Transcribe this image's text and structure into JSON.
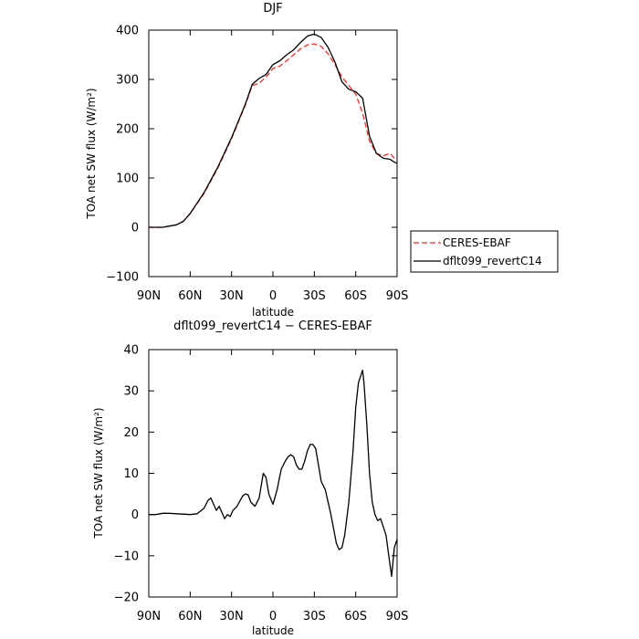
{
  "chart_data": [
    {
      "type": "line",
      "title": "DJF",
      "xlabel": "latitude",
      "ylabel": "TOA net SW flux (W/m²)",
      "xticks": [
        "90N",
        "60N",
        "30N",
        "0",
        "30S",
        "60S",
        "90S"
      ],
      "xtick_values": [
        90,
        60,
        30,
        0,
        -30,
        -60,
        -90
      ],
      "xlim": [
        90,
        -90
      ],
      "ylim": [
        -100,
        400
      ],
      "yticks": [
        -100,
        0,
        100,
        200,
        300,
        400
      ],
      "ytick_labels": [
        "−100",
        "0",
        "100",
        "200",
        "300",
        "400"
      ],
      "grid": false,
      "legend_position": "right",
      "series": [
        {
          "name": "CERES-EBAF",
          "color": "#e8312b",
          "dash": "dashed",
          "x": [
            90,
            80,
            70,
            65,
            60,
            50,
            40,
            30,
            20,
            15,
            10,
            5,
            0,
            -5,
            -10,
            -15,
            -20,
            -25,
            -30,
            -35,
            -40,
            -45,
            -50,
            -55,
            -60,
            -65,
            -70,
            -75,
            -80,
            -85,
            -88,
            -90
          ],
          "y": [
            0,
            0,
            5,
            12,
            28,
            68,
            120,
            180,
            248,
            288,
            292,
            305,
            322,
            327,
            338,
            350,
            362,
            370,
            372,
            367,
            352,
            330,
            305,
            288,
            270,
            232,
            175,
            150,
            145,
            150,
            140,
            135
          ]
        },
        {
          "name": "dflt099_revertC14",
          "color": "#000000",
          "dash": "solid",
          "x": [
            90,
            80,
            70,
            65,
            60,
            50,
            40,
            30,
            20,
            15,
            10,
            5,
            0,
            -5,
            -10,
            -15,
            -20,
            -25,
            -30,
            -35,
            -40,
            -45,
            -50,
            -55,
            -60,
            -65,
            -70,
            -75,
            -80,
            -85,
            -88,
            -90
          ],
          "y": [
            0,
            0,
            5,
            12,
            28,
            70,
            122,
            182,
            250,
            290,
            302,
            310,
            330,
            338,
            350,
            360,
            375,
            388,
            392,
            385,
            365,
            335,
            295,
            280,
            275,
            262,
            185,
            150,
            140,
            138,
            132,
            130
          ]
        }
      ]
    },
    {
      "type": "line",
      "title": "dflt099_revertC14 − CERES-EBAF",
      "xlabel": "latitude",
      "ylabel": "TOA net SW flux (W/m²)",
      "xticks": [
        "90N",
        "60N",
        "30N",
        "0",
        "30S",
        "60S",
        "90S"
      ],
      "xtick_values": [
        90,
        60,
        30,
        0,
        -30,
        -60,
        -90
      ],
      "xlim": [
        90,
        -90
      ],
      "ylim": [
        -20,
        40
      ],
      "yticks": [
        -20,
        -10,
        0,
        10,
        20,
        30,
        40
      ],
      "ytick_labels": [
        "−20",
        "−10",
        "0",
        "10",
        "20",
        "30",
        "40"
      ],
      "grid": false,
      "series": [
        {
          "color": "#000000",
          "dash": "solid",
          "x": [
            90,
            85,
            80,
            75,
            70,
            65,
            60,
            55,
            50,
            47,
            45,
            43,
            41,
            39,
            37,
            35,
            33,
            31,
            29,
            26,
            22,
            20,
            18,
            16,
            13,
            10,
            7,
            5,
            3,
            0,
            -3,
            -6,
            -9,
            -11,
            -13,
            -15,
            -17,
            -19,
            -21,
            -23,
            -25,
            -27,
            -29,
            -31,
            -33,
            -35,
            -38,
            -42,
            -46,
            -48,
            -50,
            -52,
            -55,
            -58,
            -60,
            -62,
            -64,
            -65,
            -66,
            -68,
            -70,
            -72,
            -74,
            -76,
            -78,
            -80,
            -82,
            -84,
            -86,
            -88,
            -90
          ],
          "y": [
            0,
            0,
            0.3,
            0.3,
            0.2,
            0.1,
            0,
            0.2,
            1.5,
            3.5,
            4,
            2.5,
            1,
            2,
            0.5,
            -1,
            0,
            -0.5,
            1,
            2,
            4.5,
            5,
            4.8,
            3,
            2,
            4,
            10,
            9,
            5,
            2.5,
            6,
            11,
            13,
            14,
            14.5,
            14,
            12,
            11,
            11,
            13,
            15.5,
            17,
            17,
            16,
            12,
            8,
            6,
            0,
            -7,
            -8.5,
            -8,
            -5,
            3,
            15,
            26,
            32,
            34,
            35,
            32,
            22,
            10,
            3,
            0,
            -1.5,
            -1,
            -3,
            -5,
            -10,
            -15,
            -8,
            -6
          ]
        }
      ]
    }
  ]
}
